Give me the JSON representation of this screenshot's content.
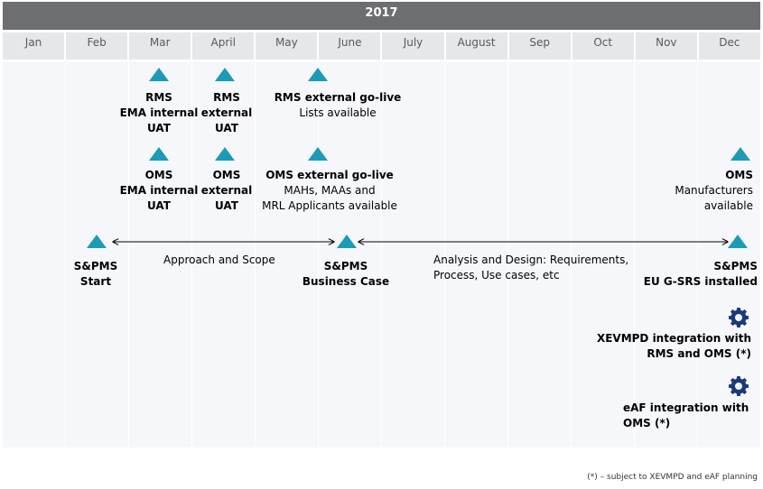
{
  "year": "2017",
  "months": [
    "Jan",
    "Feb",
    "Mar",
    "April",
    "May",
    "June",
    "July",
    "August",
    "Sep",
    "Oct",
    "Nov",
    "Dec"
  ],
  "milestones": {
    "rms_ema": [
      "RMS",
      "EMA internal",
      "UAT"
    ],
    "rms_ext": [
      "RMS",
      "external",
      "UAT"
    ],
    "rms_golive": [
      "RMS external go-live",
      "Lists available"
    ],
    "oms_ema": [
      "OMS",
      "EMA internal",
      "UAT"
    ],
    "oms_ext": [
      "OMS",
      "external",
      "UAT"
    ],
    "oms_golive": [
      "OMS external go-live",
      "MAHs, MAAs and",
      "MRL Applicants available"
    ],
    "oms_dec": [
      "OMS",
      "Manufacturers",
      "available"
    ],
    "sp_start": [
      "S&PMS",
      "Start"
    ],
    "sp_bc": [
      "S&PMS",
      "Business Case"
    ],
    "sp_eu": [
      "S&PMS",
      "EU G-SRS installed"
    ],
    "xevmpd": [
      "XEVMPD integration with",
      "RMS and OMS (*)"
    ],
    "eaf": [
      "eAF integration with",
      "OMS (*)"
    ]
  },
  "phases": {
    "approach": "Approach and Scope",
    "analysis": [
      "Analysis and Design: Requirements,",
      "Process, Use cases, etc"
    ]
  },
  "footnote": "(*) – subject to XEVMPD and eAF planning",
  "colors": {
    "milestone": "#1b9bb5",
    "gear": "#1a3a7a",
    "header": "#6d6e71",
    "month_bg": "#e6e7e8"
  }
}
